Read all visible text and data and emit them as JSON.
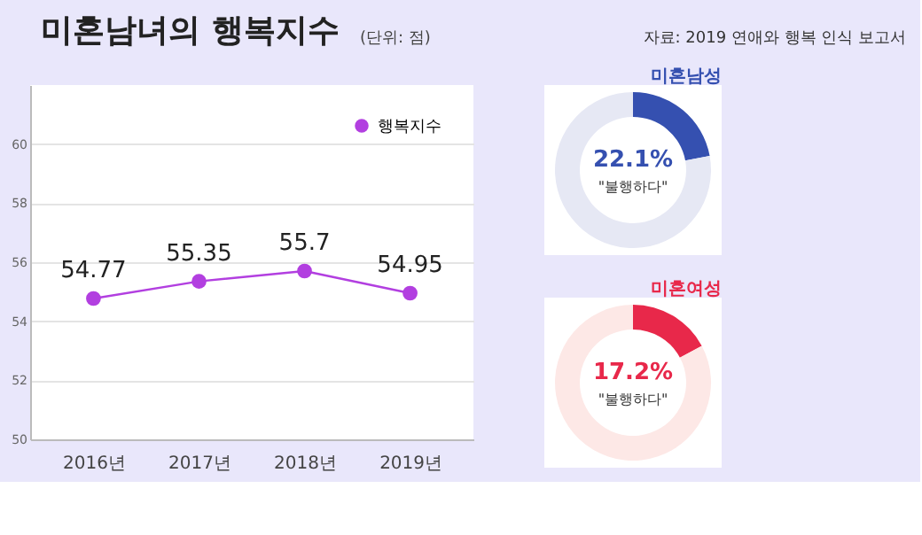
{
  "chart_data": [
    {
      "type": "line",
      "title": "미혼남녀의 행복지수",
      "subtitle": "(단위: 점)",
      "annotations": [
        "자료: 2019 연애와 행복 인식 보고서"
      ],
      "categories": [
        "2016년",
        "2017년",
        "2018년",
        "2019년"
      ],
      "series": [
        {
          "name": "행복지수",
          "color": "#b23fe0",
          "values": [
            54.77,
            55.35,
            55.7,
            54.95
          ]
        }
      ],
      "ylim": [
        50,
        62
      ],
      "yticks": [
        50,
        52,
        54,
        56,
        58,
        60
      ],
      "grid": "y",
      "legend": "top right",
      "marker": "circle",
      "line_style": "solid",
      "data_labels": true
    },
    {
      "type": "donut",
      "title": "미혼남성",
      "categories": [
        "\"불행하다\"",
        null
      ],
      "values": [
        22.1,
        77.9
      ],
      "colors": [
        "#3550b0",
        "#e6e8f4"
      ],
      "value_labels": [
        "22.1%",
        null
      ]
    },
    {
      "type": "donut",
      "title": "미혼여성",
      "categories": [
        "\"불행하다\"",
        null
      ],
      "values": [
        17.2,
        82.8
      ],
      "colors": [
        "#e8284a",
        "#fde8e6"
      ],
      "value_labels": [
        "17.2%",
        null
      ]
    }
  ]
}
